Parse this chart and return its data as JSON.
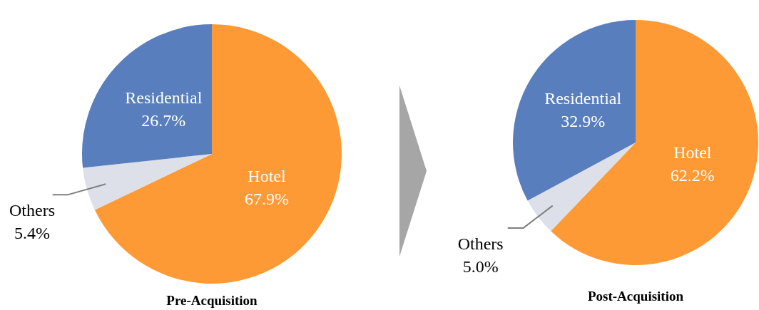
{
  "chart_data": [
    {
      "type": "pie",
      "title": "Pre-Acquisition",
      "categories": [
        "Hotel",
        "Others",
        "Residential"
      ],
      "values": [
        67.9,
        5.4,
        26.7
      ],
      "colors": [
        "#fe9a36",
        "#dde0e8",
        "#587ebd"
      ],
      "value_labels": [
        "67.9%",
        "5.4%",
        "26.7%"
      ]
    },
    {
      "type": "pie",
      "title": "Post-Acquisition",
      "categories": [
        "Hotel",
        "Others",
        "Residential"
      ],
      "values": [
        62.2,
        5.0,
        32.9
      ],
      "colors": [
        "#fe9a36",
        "#dde0e8",
        "#587ebd"
      ],
      "value_labels": [
        "62.2%",
        "5.0%",
        "32.9%"
      ]
    }
  ]
}
